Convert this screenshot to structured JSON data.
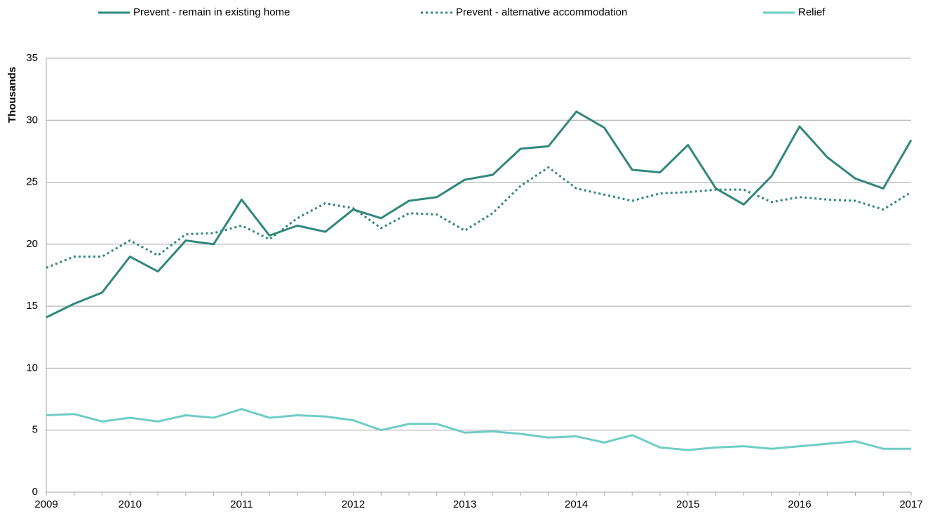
{
  "chart_data": {
    "type": "line",
    "y_label": "Thousands",
    "categories": [
      "2009",
      null,
      null,
      "2010",
      null,
      null,
      null,
      "2011",
      null,
      null,
      null,
      "2012",
      null,
      null,
      null,
      "2013",
      null,
      null,
      null,
      "2014",
      null,
      null,
      null,
      "2015",
      null,
      null,
      null,
      "2016",
      null,
      null,
      null,
      "2017"
    ],
    "series": [
      {
        "name": "Prevent - remain in existing home",
        "color": "#31877c",
        "style": "solid",
        "values": [
          14.1,
          15.2,
          16.1,
          19.0,
          17.8,
          20.3,
          20.0,
          23.6,
          20.7,
          21.5,
          21.0,
          22.8,
          22.1,
          23.5,
          23.8,
          25.2,
          25.6,
          27.7,
          27.9,
          30.7,
          29.4,
          26.0,
          25.8,
          28.0,
          24.5,
          23.2,
          25.5,
          29.5,
          27.0,
          25.3,
          24.5,
          28.4
        ]
      },
      {
        "name": "Prevent - alternative accommodation",
        "color": "#31877c",
        "style": "dotted",
        "values": [
          18.1,
          19.0,
          19.0,
          20.3,
          19.1,
          20.8,
          20.9,
          21.5,
          20.4,
          22.1,
          23.3,
          22.9,
          21.3,
          22.5,
          22.4,
          21.1,
          22.5,
          24.7,
          26.2,
          24.5,
          24.0,
          23.5,
          24.1,
          24.2,
          24.4,
          24.4,
          23.4,
          23.8,
          23.6,
          23.5,
          22.8,
          24.2
        ]
      },
      {
        "name": "Relief",
        "color": "#6fcdc5",
        "style": "solid",
        "values": [
          6.2,
          6.3,
          5.7,
          6.0,
          5.7,
          6.2,
          6.0,
          6.7,
          6.0,
          6.2,
          6.1,
          5.8,
          5.0,
          5.5,
          5.5,
          4.8,
          4.9,
          4.7,
          4.4,
          4.5,
          4.0,
          4.6,
          3.6,
          3.4,
          3.6,
          3.7,
          3.5,
          3.7,
          3.9,
          4.1,
          3.5,
          3.5
        ]
      }
    ],
    "ylim": [
      0,
      35
    ],
    "yticks": [
      0,
      5,
      10,
      15,
      20,
      25,
      30,
      35
    ],
    "grid": true,
    "legend": "top"
  }
}
